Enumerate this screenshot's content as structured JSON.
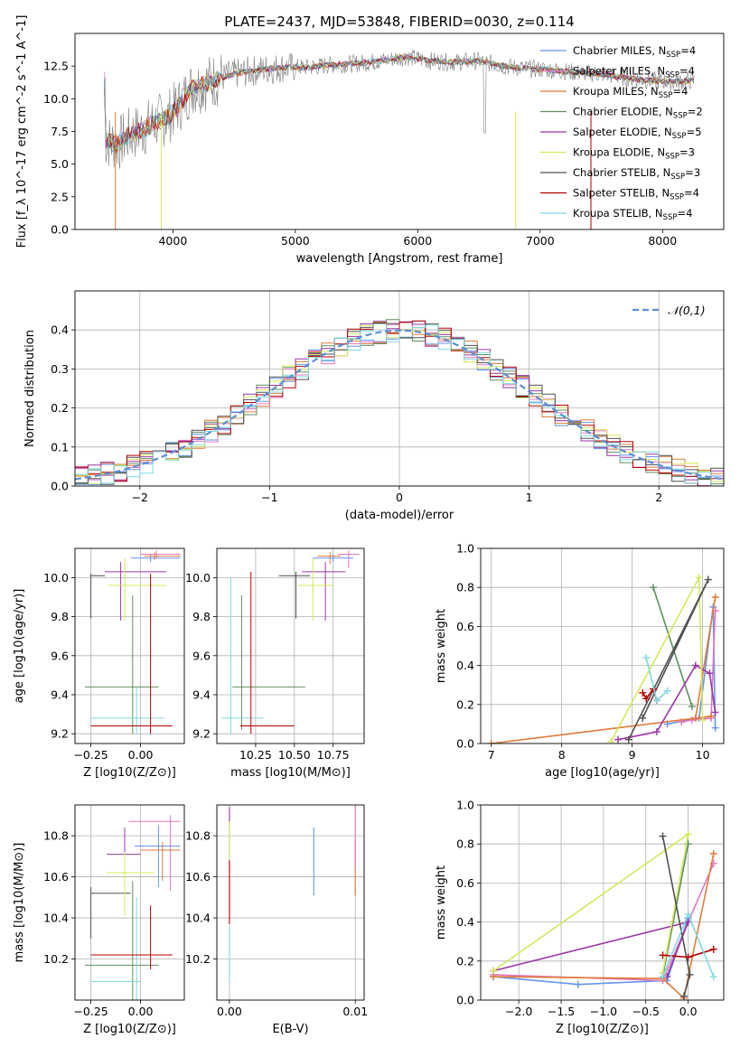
{
  "colors": {
    "Chabrier MILES": "#6495ed",
    "Salpeter MILES": "#e377c2",
    "Kroupa MILES": "#e07b39",
    "Chabrier ELODIE": "#5f8f5f",
    "Salpeter ELODIE": "#9b35a8",
    "Kroupa ELODIE": "#d4e85a",
    "Chabrier STELIB": "#505050",
    "Salpeter STELIB": "#b80000",
    "Kroupa STELIB": "#7fd8e0",
    "normal_curve": "#5b8fd4",
    "grid": "#b0b0b0"
  },
  "chart_data": [
    {
      "type": "line",
      "title": "PLATE=2437, MJD=53848, FIBERID=0030, z=0.114",
      "xlabel": "wavelength [Angstrom, rest frame]",
      "ylabel": "Flux [f_λ 10^-17 erg cm^-2 s^-1 A^-1]",
      "xlim": [
        3200,
        8500
      ],
      "ylim": [
        0,
        15
      ],
      "xticks": [
        "4000",
        "5000",
        "6000",
        "7000",
        "8000"
      ],
      "yticks": [
        "0.0",
        "2.5",
        "5.0",
        "7.5",
        "10.0",
        "12.5"
      ],
      "spectrum": {
        "wavelength": [
          3450,
          3550,
          3650,
          3750,
          3850,
          3950,
          4050,
          4150,
          4300,
          4500,
          4700,
          4900,
          5100,
          5300,
          5500,
          5700,
          5900,
          6100,
          6300,
          6500,
          6700,
          6900,
          7100,
          7300,
          7500,
          7700,
          7900,
          8100,
          8250
        ],
        "flux": [
          6.8,
          6.5,
          7.3,
          7.6,
          8.2,
          8.5,
          9.5,
          10.8,
          11.3,
          11.9,
          12.2,
          12.4,
          12.4,
          12.6,
          12.7,
          12.9,
          13.2,
          12.9,
          12.8,
          12.9,
          12.5,
          12.3,
          12.2,
          12.0,
          11.9,
          11.6,
          11.4,
          11.3,
          11.4
        ]
      },
      "legend_position": "upper-right",
      "legend": [
        {
          "name": "Chabrier MILES",
          "n_ssp": "4"
        },
        {
          "name": "Salpeter MILES",
          "n_ssp": "4"
        },
        {
          "name": "Kroupa MILES",
          "n_ssp": "4"
        },
        {
          "name": "Chabrier ELODIE",
          "n_ssp": "2"
        },
        {
          "name": "Salpeter ELODIE",
          "n_ssp": "5"
        },
        {
          "name": "Kroupa ELODIE",
          "n_ssp": "3"
        },
        {
          "name": "Chabrier STELIB",
          "n_ssp": "3"
        },
        {
          "name": "Salpeter STELIB",
          "n_ssp": "4"
        },
        {
          "name": "Kroupa STELIB",
          "n_ssp": "4"
        }
      ]
    },
    {
      "type": "bar",
      "xlabel": "(data-model)/error",
      "ylabel": "Normed distribution",
      "xlim": [
        -2.5,
        2.5
      ],
      "ylim": [
        0,
        0.5
      ],
      "xticks": [
        "−2",
        "−1",
        "0",
        "1",
        "2"
      ],
      "yticks": [
        "0.0",
        "0.1",
        "0.2",
        "0.3",
        "0.4"
      ],
      "bin_width": 0.1,
      "bin_start": -2.5,
      "grid": true,
      "legend_position": "upper-right",
      "legend": [
        {
          "name": "𝒩(0,1)"
        }
      ]
    },
    {
      "type": "scatter",
      "xlabel": "Z [log10(Z/Z⊙)]",
      "ylabel": "age [log10(age/yr)]",
      "xlim": [
        -0.33,
        0.22
      ],
      "ylim": [
        9.15,
        10.15
      ],
      "xticks": [
        "−0.25",
        "0.00"
      ],
      "yticks": [
        "9.2",
        "9.4",
        "9.6",
        "9.8",
        "10.0"
      ],
      "grid": true
    },
    {
      "type": "scatter",
      "xlabel": "mass [log10(M/M⊙)]",
      "ylabel": "",
      "xlim": [
        10.0,
        10.95
      ],
      "ylim": [
        9.15,
        10.15
      ],
      "xticks": [
        "10.25",
        "10.50",
        "10.75"
      ],
      "yticks": [
        "9.2",
        "9.4",
        "9.6",
        "9.8",
        "10.0"
      ],
      "grid": true
    },
    {
      "type": "line",
      "xlabel": "age [log10(age/yr)]",
      "ylabel": "mass weight",
      "xlim": [
        6.85,
        10.3
      ],
      "ylim": [
        0,
        1
      ],
      "xticks": [
        "7",
        "8",
        "9",
        "10"
      ],
      "yticks": [
        "0.0",
        "0.2",
        "0.4",
        "0.6",
        "0.8",
        "1.0"
      ],
      "grid": true,
      "series": [
        {
          "model": "Chabrier MILES",
          "x": [
            10.18,
            10.15,
            9.95,
            9.5
          ],
          "y": [
            0.08,
            0.7,
            0.13,
            0.1
          ]
        },
        {
          "model": "Salpeter MILES",
          "x": [
            10.18,
            10.12,
            9.85,
            9.7
          ],
          "y": [
            0.68,
            0.13,
            0.12,
            0.11
          ]
        },
        {
          "model": "Kroupa MILES",
          "x": [
            10.18,
            9.9,
            7.0,
            10.12
          ],
          "y": [
            0.75,
            0.13,
            0.0,
            0.14
          ]
        },
        {
          "model": "Chabrier ELODIE",
          "x": [
            9.3,
            9.85
          ],
          "y": [
            0.8,
            0.19
          ]
        },
        {
          "model": "Salpeter ELODIE",
          "x": [
            8.8,
            9.35,
            9.9,
            10.1,
            10.18
          ],
          "y": [
            0.02,
            0.06,
            0.4,
            0.36,
            0.16
          ]
        },
        {
          "model": "Kroupa ELODIE",
          "x": [
            8.7,
            9.95,
            10.0
          ],
          "y": [
            0.01,
            0.85,
            0.12
          ]
        },
        {
          "model": "Chabrier STELIB",
          "x": [
            8.95,
            10.08,
            9.15
          ],
          "y": [
            0.02,
            0.84,
            0.13
          ]
        },
        {
          "model": "Salpeter STELIB",
          "x": [
            9.15,
            9.2,
            9.3,
            9.35
          ],
          "y": [
            0.26,
            0.23,
            0.28,
            0.22
          ]
        },
        {
          "model": "Kroupa STELIB",
          "x": [
            9.2,
            9.35,
            9.5
          ],
          "y": [
            0.44,
            0.22,
            0.27
          ]
        }
      ]
    },
    {
      "type": "scatter",
      "xlabel": "Z [log10(Z/Z⊙)]",
      "ylabel": "mass [log10(M/M⊙)]",
      "xlim": [
        -0.33,
        0.22
      ],
      "ylim": [
        10.0,
        10.95
      ],
      "xticks": [
        "−0.25",
        "0.00"
      ],
      "yticks": [
        "10.2",
        "10.4",
        "10.6",
        "10.8"
      ],
      "grid": true
    },
    {
      "type": "scatter",
      "xlabel": "E(B-V)",
      "ylabel": "",
      "xlim": [
        -0.001,
        0.0107
      ],
      "ylim": [
        10.0,
        10.95
      ],
      "xticks": [
        "0.00",
        "0.01"
      ],
      "yticks": [
        "10.2",
        "10.4",
        "10.6",
        "10.8"
      ],
      "grid": true,
      "points": [
        {
          "model": "Salpeter ELODIE",
          "x": 0.0,
          "y": 10.82
        },
        {
          "model": "Kroupa ELODIE",
          "x": 0.0,
          "y": 10.75
        },
        {
          "model": "Salpeter STELIB",
          "x": 0.0,
          "y": 10.55
        },
        {
          "model": "Kroupa STELIB",
          "x": 0.0,
          "y": 10.25
        },
        {
          "model": "Chabrier MILES",
          "x": 0.0067,
          "y": 10.7
        },
        {
          "model": "Kroupa MILES",
          "x": 0.01,
          "y": 10.67
        },
        {
          "model": "Salpeter MILES",
          "x": 0.01,
          "y": 10.85
        }
      ]
    },
    {
      "type": "line",
      "xlabel": "Z [log10(Z/Z⊙)]",
      "ylabel": "mass weight",
      "xlim": [
        -2.45,
        0.42
      ],
      "ylim": [
        0,
        1
      ],
      "xticks": [
        "−2.0",
        "−1.5",
        "−1.0",
        "−0.5",
        "0.0"
      ],
      "yticks": [
        "0.0",
        "0.2",
        "0.4",
        "0.6",
        "0.8",
        "1.0"
      ],
      "grid": true,
      "series": [
        {
          "model": "Chabrier MILES",
          "x": [
            -2.3,
            -1.3,
            -0.25,
            0.0
          ],
          "y": [
            0.12,
            0.08,
            0.1,
            0.42
          ]
        },
        {
          "model": "Salpeter MILES",
          "x": [
            -2.3,
            -0.3,
            0.0,
            0.3
          ],
          "y": [
            0.13,
            0.1,
            0.4,
            0.7
          ]
        },
        {
          "model": "Kroupa MILES",
          "x": [
            -2.3,
            -0.3,
            -0.05,
            0.3
          ],
          "y": [
            0.12,
            0.11,
            0.01,
            0.75
          ]
        },
        {
          "model": "Chabrier ELODIE",
          "x": [
            -0.3,
            0.0
          ],
          "y": [
            0.12,
            0.8
          ]
        },
        {
          "model": "Salpeter ELODIE",
          "x": [
            -2.3,
            0.0,
            -0.25
          ],
          "y": [
            0.15,
            0.4,
            0.12
          ]
        },
        {
          "model": "Kroupa ELODIE",
          "x": [
            -2.3,
            0.0,
            -0.3
          ],
          "y": [
            0.15,
            0.85,
            0.14
          ]
        },
        {
          "model": "Chabrier STELIB",
          "x": [
            -0.05,
            0.02,
            -0.3
          ],
          "y": [
            0.02,
            0.13,
            0.84
          ]
        },
        {
          "model": "Salpeter STELIB",
          "x": [
            -0.3,
            0.0,
            0.3
          ],
          "y": [
            0.23,
            0.22,
            0.26
          ]
        },
        {
          "model": "Kroupa STELIB",
          "x": [
            -0.3,
            0.0,
            0.3
          ],
          "y": [
            0.12,
            0.44,
            0.12
          ]
        }
      ]
    }
  ]
}
